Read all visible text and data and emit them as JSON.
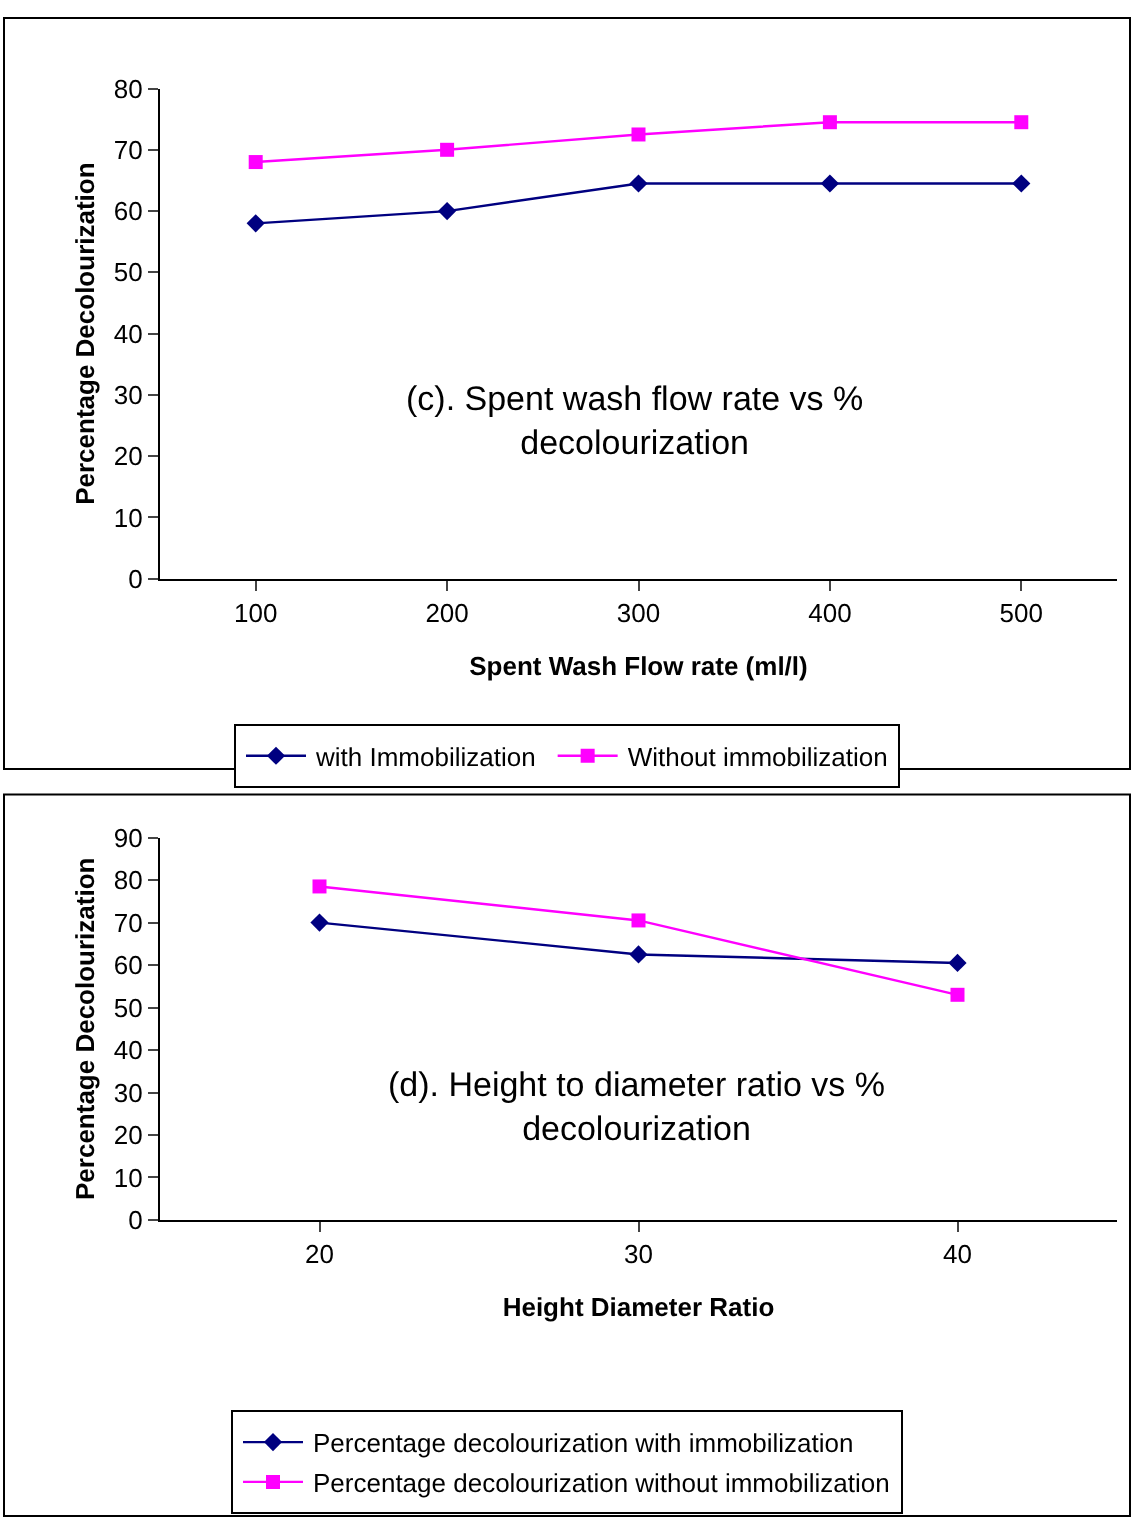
{
  "chart_data": [
    {
      "type": "line",
      "categories": [
        "100",
        "200",
        "300",
        "400",
        "500"
      ],
      "xlabel": "Spent Wash Flow rate (ml/l)",
      "ylabel": "Percentage Decolourization",
      "ylim": [
        0,
        80
      ],
      "yticks": [
        0,
        10,
        20,
        30,
        40,
        50,
        60,
        70,
        80
      ],
      "grid": false,
      "legend": "bottom",
      "annotations": [
        "(c). Spent wash flow rate vs % decolourization"
      ],
      "series": [
        {
          "name": "with Immobilization",
          "color": "#000080",
          "marker": "diamond",
          "values": [
            58,
            60,
            64.5,
            64.5,
            64.5
          ]
        },
        {
          "name": "Without immobilization",
          "color": "#ff00ff",
          "marker": "square",
          "values": [
            68,
            70,
            72.5,
            74.5,
            74.5
          ]
        }
      ]
    },
    {
      "type": "line",
      "categories": [
        "20",
        "30",
        "40"
      ],
      "xlabel": "Height Diameter Ratio",
      "ylabel": "Percentage Decolourization",
      "ylim": [
        0,
        90
      ],
      "yticks": [
        0,
        10,
        20,
        30,
        40,
        50,
        60,
        70,
        80,
        90
      ],
      "grid": false,
      "legend": "bottom",
      "annotations": [
        "(d). Height to diameter ratio vs % decolourization"
      ],
      "series": [
        {
          "name": "Percentage decolourization with immobilization",
          "color": "#000080",
          "marker": "diamond",
          "values": [
            70,
            62.5,
            60.5
          ]
        },
        {
          "name": "Percentage decolourization without immobilization",
          "color": "#ff00ff",
          "marker": "square",
          "values": [
            78.5,
            70.5,
            53
          ]
        }
      ]
    }
  ]
}
